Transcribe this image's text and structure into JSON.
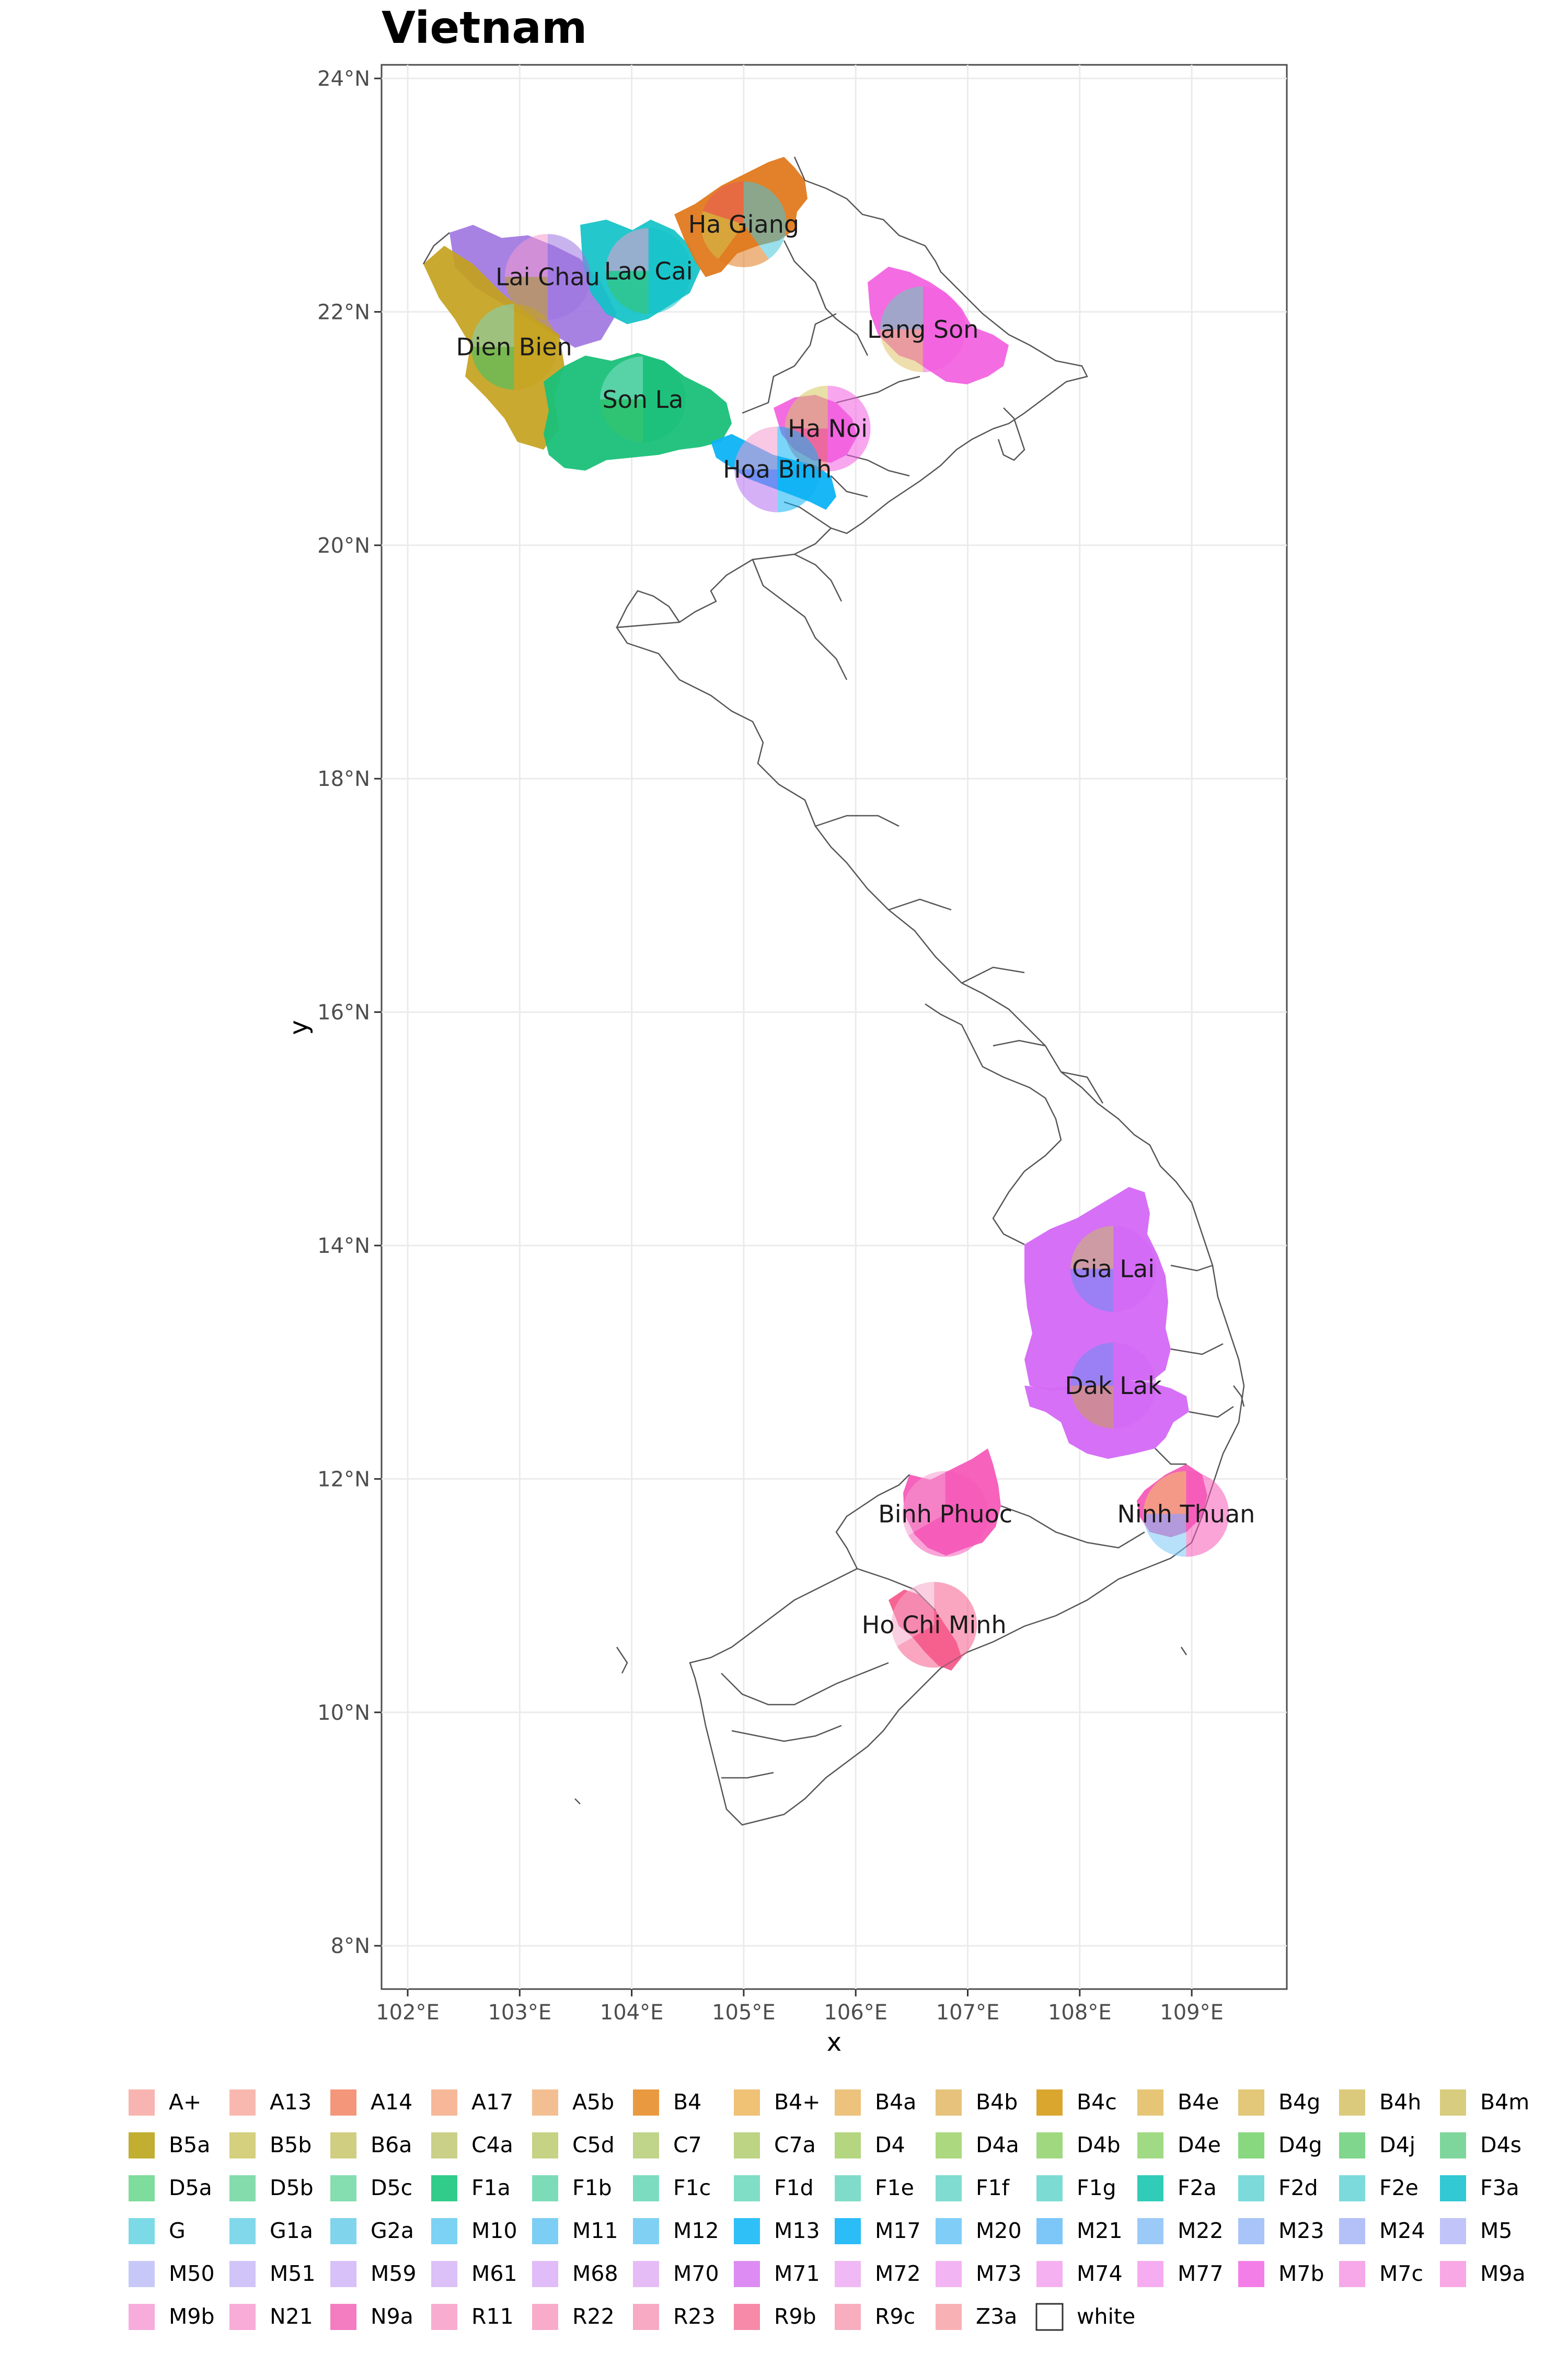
{
  "title": "Vietnam",
  "axes": {
    "x_title": "x",
    "y_title": "y",
    "x_ticks": [
      "102°E",
      "103°E",
      "104°E",
      "105°E",
      "106°E",
      "107°E",
      "108°E",
      "109°E"
    ],
    "y_ticks": [
      "24°N",
      "22°N",
      "20°N",
      "18°N",
      "16°N",
      "14°N",
      "12°N",
      "10°N",
      "8°N"
    ]
  },
  "places": [
    {
      "label": "Ha Giang",
      "lon": 105.0,
      "lat": 22.75,
      "colors": [
        "#46c4dc",
        "#e07a1e",
        "#cfc24a",
        "#ea5a5a"
      ]
    },
    {
      "label": "Lai Chau",
      "lon": 103.25,
      "lat": 22.3,
      "colors": [
        "#9d74e0",
        "#c4a21d",
        "#f49ad0"
      ]
    },
    {
      "label": "Lao Cai",
      "lon": 104.15,
      "lat": 22.35,
      "colors": [
        "#11c2c8",
        "#37c46b",
        "#f49ad0"
      ]
    },
    {
      "label": "Lang Son",
      "lon": 106.6,
      "lat": 21.85,
      "colors": [
        "#f25fe0",
        "#e1c36a",
        "#5fd6b6"
      ]
    },
    {
      "label": "Dien Bien",
      "lon": 102.95,
      "lat": 21.7,
      "colors": [
        "#c4a21d",
        "#37c46b",
        "#7bd6c0"
      ]
    },
    {
      "label": "Son La",
      "lon": 104.1,
      "lat": 21.25,
      "colors": [
        "#19c078",
        "#37c46b",
        "#83e0c8"
      ]
    },
    {
      "label": "Ha Noi",
      "lon": 105.75,
      "lat": 21.0,
      "colors": [
        "#f25fe0",
        "#e56767",
        "#d6c95e"
      ]
    },
    {
      "label": "Hoa Binh",
      "lon": 105.3,
      "lat": 20.65,
      "colors": [
        "#0db3f5",
        "#b46ff0",
        "#f49ad0"
      ]
    },
    {
      "label": "Gia Lai",
      "lon": 108.3,
      "lat": 13.8,
      "colors": [
        "#d468f5",
        "#6b8cf2",
        "#c9c063"
      ]
    },
    {
      "label": "Dak Lak",
      "lon": 108.3,
      "lat": 12.8,
      "colors": [
        "#d468f5",
        "#c9a050",
        "#6b8cf2"
      ]
    },
    {
      "label": "Binh Phuoc",
      "lon": 106.8,
      "lat": 11.7,
      "colors": [
        "#f55ab8",
        "#f49ad0"
      ]
    },
    {
      "label": "Ninh Thuan",
      "lon": 108.95,
      "lat": 11.7,
      "colors": [
        "#f55ab8",
        "#7bc8f5",
        "#f2c65c"
      ]
    },
    {
      "label": "Ho Chi Minh",
      "lon": 106.7,
      "lat": 10.75,
      "colors": [
        "#f65c8c",
        "#f6a8c8"
      ]
    }
  ],
  "legend": [
    {
      "label": "A+",
      "color": "#f8b4b0"
    },
    {
      "label": "A13",
      "color": "#f8b8b0"
    },
    {
      "label": "A14",
      "color": "#f4967a"
    },
    {
      "label": "A17",
      "color": "#f6b898"
    },
    {
      "label": "A5b",
      "color": "#f3bf92"
    },
    {
      "label": "B4",
      "color": "#e99a40"
    },
    {
      "label": "B4+",
      "color": "#efc276"
    },
    {
      "label": "B4a",
      "color": "#edc27c"
    },
    {
      "label": "B4b",
      "color": "#e6c27c"
    },
    {
      "label": "B4c",
      "color": "#daa62e"
    },
    {
      "label": "B4e",
      "color": "#e6c676"
    },
    {
      "label": "B4g",
      "color": "#e2c878"
    },
    {
      "label": "B4h",
      "color": "#dcca7c"
    },
    {
      "label": "B4m",
      "color": "#d8cc7e"
    },
    {
      "label": "B5a",
      "color": "#c2ae30"
    },
    {
      "label": "B5b",
      "color": "#d4d07e"
    },
    {
      "label": "B6a",
      "color": "#d0ce80"
    },
    {
      "label": "C4a",
      "color": "#cad088"
    },
    {
      "label": "C5d",
      "color": "#c6d284"
    },
    {
      "label": "C7",
      "color": "#c0d48a"
    },
    {
      "label": "C7a",
      "color": "#bcd484"
    },
    {
      "label": "D4",
      "color": "#b4d680"
    },
    {
      "label": "D4a",
      "color": "#acd880"
    },
    {
      "label": "D4b",
      "color": "#a0d880"
    },
    {
      "label": "D4e",
      "color": "#a0da84"
    },
    {
      "label": "D4g",
      "color": "#88d880"
    },
    {
      "label": "D4j",
      "color": "#80d68c"
    },
    {
      "label": "D4s",
      "color": "#7ed69c"
    },
    {
      "label": "D5a",
      "color": "#7edc9c"
    },
    {
      "label": "D5b",
      "color": "#84dcac"
    },
    {
      "label": "D5c",
      "color": "#84deb0"
    },
    {
      "label": "F1a",
      "color": "#32cc8a"
    },
    {
      "label": "F1b",
      "color": "#7cdcb8"
    },
    {
      "label": "F1c",
      "color": "#7cdcc0"
    },
    {
      "label": "F1d",
      "color": "#80dec6"
    },
    {
      "label": "F1e",
      "color": "#80dcca"
    },
    {
      "label": "F1f",
      "color": "#80dcd0"
    },
    {
      "label": "F1g",
      "color": "#7cdcd4"
    },
    {
      "label": "F2a",
      "color": "#30ccb8"
    },
    {
      "label": "F2d",
      "color": "#7cdada"
    },
    {
      "label": "F2e",
      "color": "#7cdadc"
    },
    {
      "label": "F3a",
      "color": "#32c8d4"
    },
    {
      "label": "G",
      "color": "#7cdae6"
    },
    {
      "label": "G1a",
      "color": "#80d8ea"
    },
    {
      "label": "G2a",
      "color": "#80d4ec"
    },
    {
      "label": "M10",
      "color": "#7cd2f2"
    },
    {
      "label": "M11",
      "color": "#7ccef4"
    },
    {
      "label": "M12",
      "color": "#80d0f4"
    },
    {
      "label": "M13",
      "color": "#30c0f8"
    },
    {
      "label": "M17",
      "color": "#2cbcf8"
    },
    {
      "label": "M20",
      "color": "#80cef8"
    },
    {
      "label": "M21",
      "color": "#7cc6f8"
    },
    {
      "label": "M22",
      "color": "#9ccaf8"
    },
    {
      "label": "M23",
      "color": "#a8c4f8"
    },
    {
      "label": "M24",
      "color": "#b4c0f8"
    },
    {
      "label": "M5",
      "color": "#c0c4f8"
    },
    {
      "label": "M50",
      "color": "#c8c8f8"
    },
    {
      "label": "M51",
      "color": "#d0c4f8"
    },
    {
      "label": "M59",
      "color": "#d8c0f8"
    },
    {
      "label": "M61",
      "color": "#dcc0f8"
    },
    {
      "label": "M68",
      "color": "#e0bcf8"
    },
    {
      "label": "M70",
      "color": "#e6bcf6"
    },
    {
      "label": "M71",
      "color": "#dc8cf2"
    },
    {
      "label": "M72",
      "color": "#f0b8f4"
    },
    {
      "label": "M73",
      "color": "#f2b4f2"
    },
    {
      "label": "M74",
      "color": "#f4b0f0"
    },
    {
      "label": "M77",
      "color": "#f6acf0"
    },
    {
      "label": "M7b",
      "color": "#f47ee8"
    },
    {
      "label": "M7c",
      "color": "#f6a8e8"
    },
    {
      "label": "M9a",
      "color": "#f8a8e4"
    },
    {
      "label": "M9b",
      "color": "#f8acdc"
    },
    {
      "label": "N21",
      "color": "#f8acd8"
    },
    {
      "label": "N9a",
      "color": "#f47cc0"
    },
    {
      "label": "R11",
      "color": "#f8acd0"
    },
    {
      "label": "R22",
      "color": "#f8acca"
    },
    {
      "label": "R23",
      "color": "#f8aac4"
    },
    {
      "label": "R9b",
      "color": "#f68aa8"
    },
    {
      "label": "R9c",
      "color": "#f8aebe"
    },
    {
      "label": "Z3a",
      "color": "#f8b2b6"
    },
    {
      "label": "white",
      "color": "#ffffff"
    }
  ]
}
